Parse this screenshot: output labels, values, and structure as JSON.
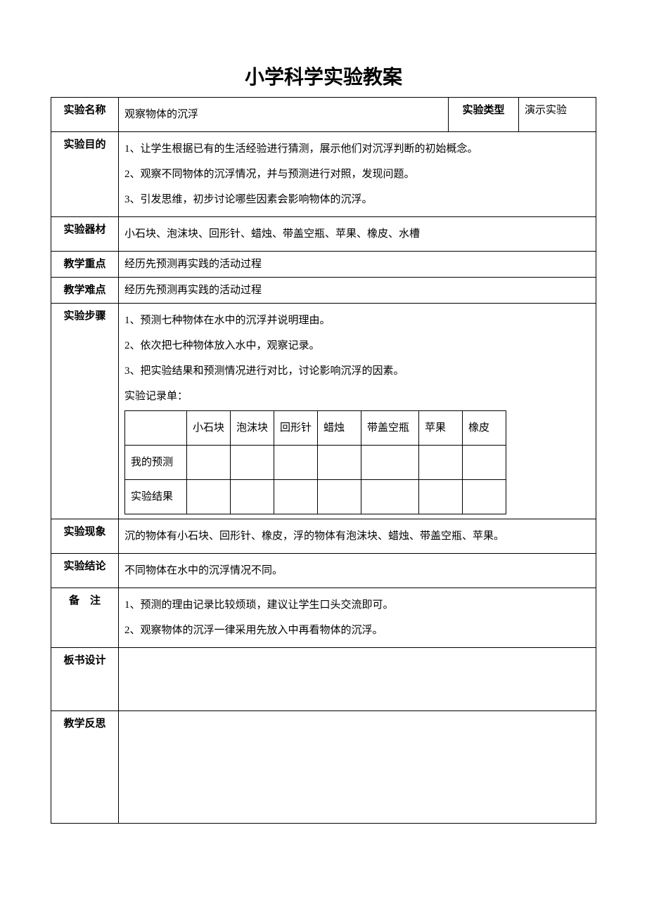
{
  "title": "小学科学实验教案",
  "labels": {
    "exp_name": "实验名称",
    "exp_type": "实验类型",
    "purpose": "实验目的",
    "equipment": "实验器材",
    "key_point": "教学重点",
    "difficult_point": "教学难点",
    "steps": "实验步骤",
    "phenomenon": "实验现象",
    "conclusion": "实验结论",
    "remark_raw": "备",
    "remark_suffix": "注",
    "board": "板书设计",
    "reflect": "教学反思"
  },
  "values": {
    "exp_name": "观察物体的沉浮",
    "exp_type": "演示实验",
    "purpose": [
      "1、让学生根据已有的生活经验进行猜测，展示他们对沉浮判断的初始概念。",
      "2、观察不同物体的沉浮情况，并与预测进行对照，发现问题。",
      "3、引发思维，初步讨论哪些因素会影响物体的沉浮。"
    ],
    "equipment": "小石块、泡沫块、回形针、蜡烛、带盖空瓶、苹果、橡皮、水槽",
    "key_point": "经历先预测再实践的活动过程",
    "difficult_point": "经历先预测再实践的活动过程",
    "steps_lines": [
      "1、预测七种物体在水中的沉浮并说明理由。",
      "2、依次把七种物体放入水中，观察记录。",
      "3、把实验结果和预测情况进行对比，讨论影响沉浮的因素。",
      "实验记录单："
    ],
    "record_table": {
      "columns": [
        "",
        "小石块",
        "泡沫块",
        "回形针",
        "蜡烛",
        "带盖空瓶",
        "苹果",
        "橡皮"
      ],
      "rows": [
        [
          "我的预测",
          "",
          "",
          "",
          "",
          "",
          "",
          ""
        ],
        [
          "实验结果",
          "",
          "",
          "",
          "",
          "",
          "",
          ""
        ]
      ]
    },
    "phenomenon": "沉的物体有小石块、回形针、橡皮，浮的物体有泡沫块、蜡烛、带盖空瓶、苹果。",
    "conclusion": "不同物体在水中的沉浮情况不同。",
    "remark": [
      "1、预测的理由记录比较烦琐，建议让学生口头交流即可。",
      "2、观察物体的沉浮一律采用先放入中再看物体的沉浮。"
    ]
  },
  "styling": {
    "page_bg": "#ffffff",
    "border_color": "#000000",
    "title_fontsize": 28,
    "body_fontsize": 15,
    "line_height": 2.4,
    "font_family": "SimSun"
  }
}
